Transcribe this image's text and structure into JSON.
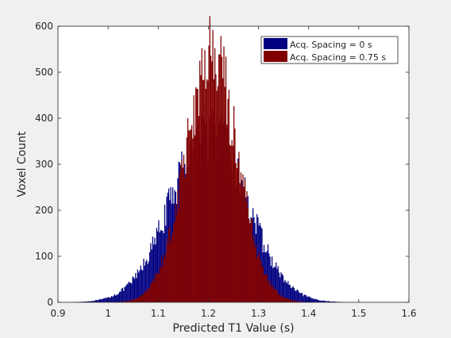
{
  "chart_data": {
    "type": "bar",
    "title": "",
    "xlabel": "Predicted T1 Value (s)",
    "ylabel": "Voxel Count",
    "xlim": [
      0.9,
      1.6
    ],
    "ylim": [
      0,
      600
    ],
    "xticks": [
      "0.9",
      "1",
      "1.1",
      "1.2",
      "1.3",
      "1.4",
      "1.5",
      "1.6"
    ],
    "yticks": [
      "0",
      "100",
      "200",
      "300",
      "400",
      "500",
      "600"
    ],
    "legend_position": "top-right",
    "grid": false,
    "series": [
      {
        "name": "Acq. Spacing = 0 s",
        "color": "#000080",
        "distribution": {
          "center": 1.2,
          "spread": 0.075,
          "peak": 372
        },
        "x_range": [
          0.92,
          1.55
        ],
        "bin_width": 0.002
      },
      {
        "name": "Acq. Spacing = 0.75 s",
        "color": "#800000",
        "distribution": {
          "center": 1.205,
          "spread": 0.052,
          "peak": 530
        },
        "x_range": [
          0.97,
          1.48
        ],
        "bin_width": 0.002
      }
    ]
  }
}
